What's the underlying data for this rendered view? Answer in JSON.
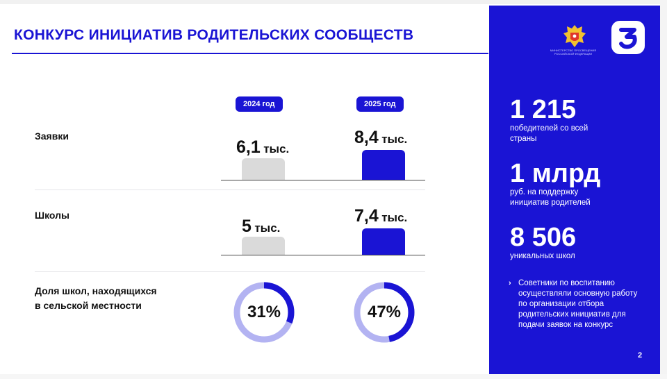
{
  "header": {
    "title": "КОНКУРС ИНИЦИАТИВ РОДИТЕЛЬСКИХ СООБЩЕСТВ"
  },
  "columns": {
    "year_1": "2024 год",
    "year_2": "2025 год"
  },
  "rows": {
    "applications": {
      "label": "Заявки",
      "value_2024": "6,1",
      "value_2025": "8,4",
      "unit": "тыс."
    },
    "schools": {
      "label": "Школы",
      "value_2024": "5",
      "value_2025": "7,4",
      "unit": "тыс."
    },
    "rural_share": {
      "label_line1": "Доля школ, находящихся",
      "label_line2": "в сельской местности",
      "value_2024": "31%",
      "value_2025": "47%",
      "fraction_2024": 0.31,
      "fraction_2025": 0.47
    }
  },
  "bar_data": {
    "applications": [
      6.1,
      8.4
    ],
    "schools": [
      5,
      7.4
    ],
    "scale_max": 8.4
  },
  "panel": {
    "ministry_text": "МИНИСТЕРСТВО ПРОСВЕЩЕНИЯ РОССИЙСКОЙ ФЕДЕРАЦИИ",
    "stats": [
      {
        "value": "1 215",
        "desc_line1": "победителей со всей",
        "desc_line2": "страны"
      },
      {
        "value": "1 млрд",
        "desc_line1": "руб. на поддержку",
        "desc_line2": "инициатив родителей"
      },
      {
        "value": "8 506",
        "desc_line1": "уникальных школ",
        "desc_line2": ""
      }
    ],
    "note_arrow": "›",
    "note": "Советники по воспитанию осуществляли основную работу по организации отбора родительских инициатив для подачи заявок на конкурс",
    "page_number": "2"
  },
  "colors": {
    "accent": "#1a14d4",
    "bar_previous": "#dadada",
    "ring_track": "#b3b3f2",
    "panel_text": "#ffffff"
  }
}
